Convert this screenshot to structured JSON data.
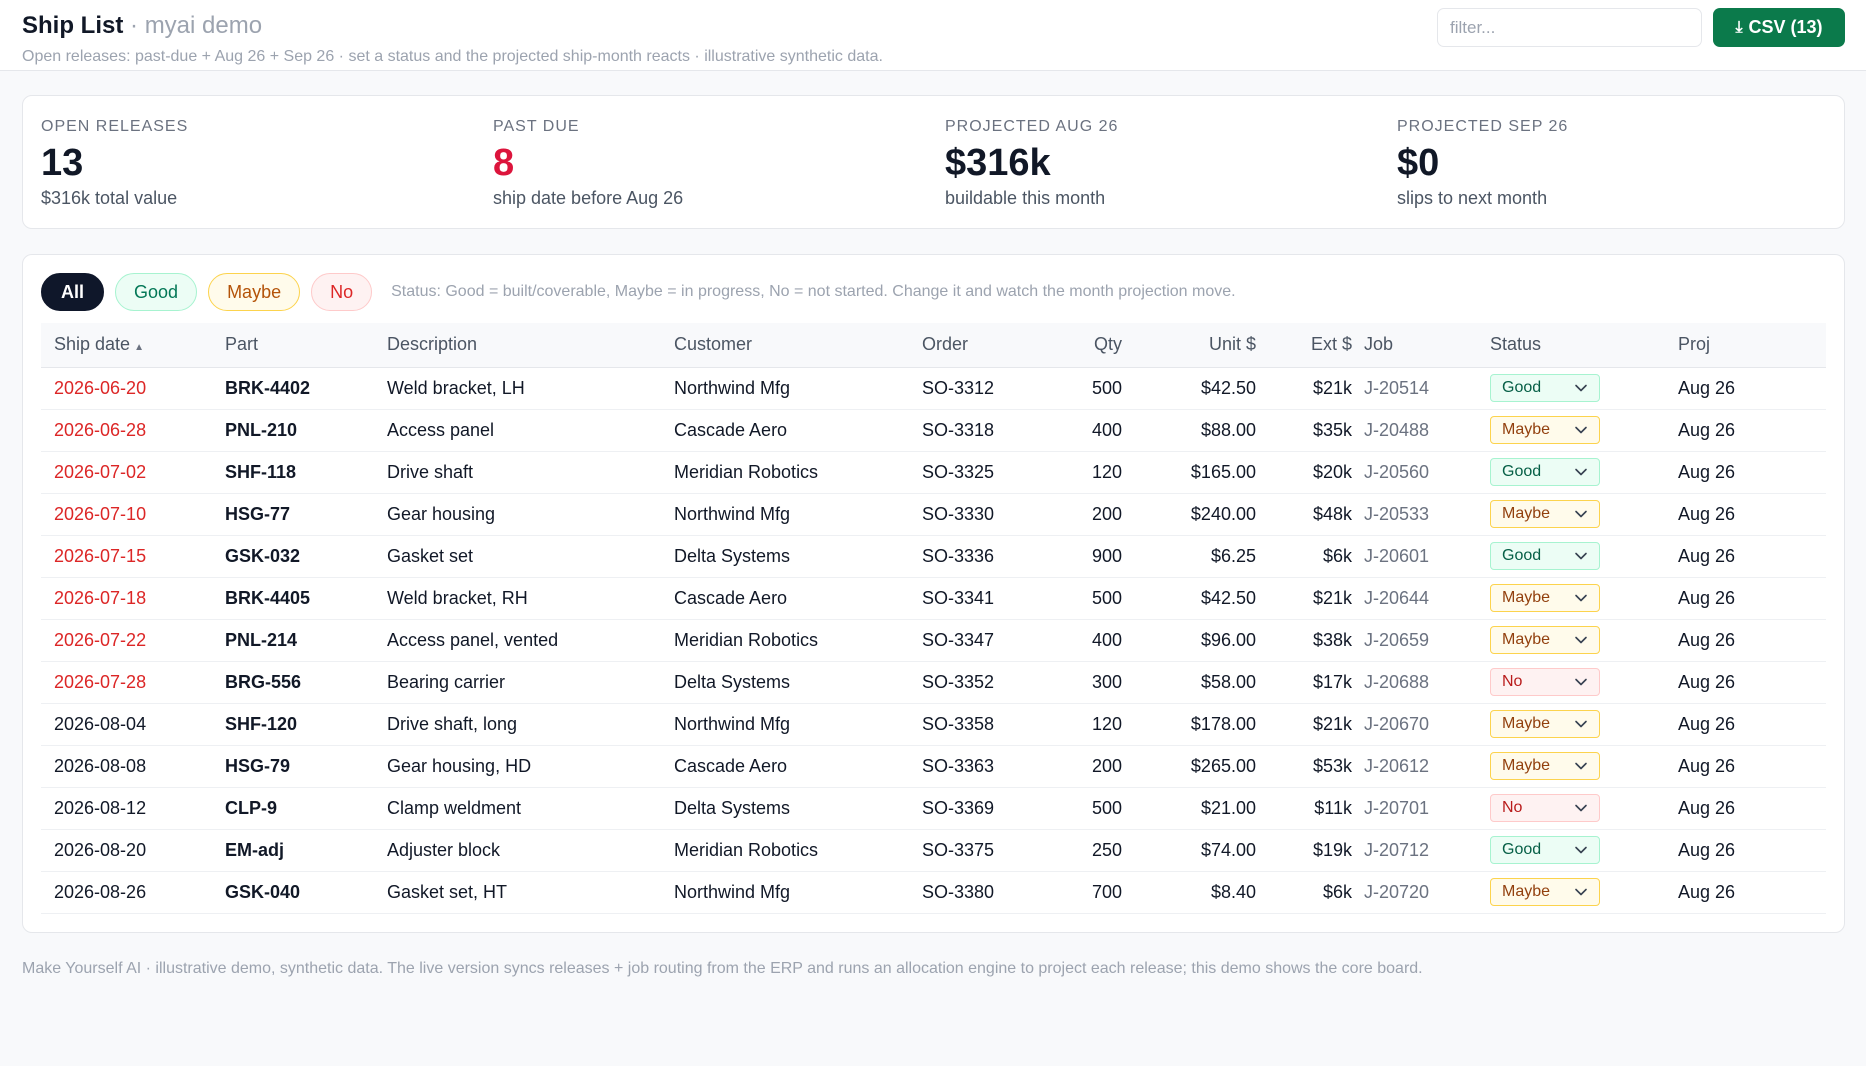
{
  "header": {
    "title": "Ship List",
    "separator": "·",
    "app_name": "myai demo",
    "subtitle": "Open releases: past-due + Aug 26 + Sep 26 · set a status and the projected ship-month reacts · illustrative synthetic data.",
    "filter_placeholder": "filter...",
    "csv_label": "CSV (13)",
    "download_icon": "download-icon"
  },
  "stats": [
    {
      "label": "OPEN RELEASES",
      "value": "13",
      "desc": "$316k total value"
    },
    {
      "label": "PAST DUE",
      "value": "8",
      "desc": "ship date before Aug 26",
      "color": "#dc143c"
    },
    {
      "label": "PROJECTED AUG 26",
      "value": "$316k",
      "desc": "buildable this month"
    },
    {
      "label": "PROJECTED SEP 26",
      "value": "$0",
      "desc": "slips to next month"
    }
  ],
  "filters": {
    "all": "All",
    "good": "Good",
    "maybe": "Maybe",
    "no": "No",
    "hint": "Status: Good = built/coverable, Maybe = in progress, No = not started. Change it and watch the month projection move."
  },
  "table": {
    "columns": {
      "ship_date": "Ship date",
      "sort_indicator": "▲",
      "part": "Part",
      "description": "Description",
      "customer": "Customer",
      "order": "Order",
      "qty": "Qty",
      "unit": "Unit $",
      "ext": "Ext $",
      "job": "Job",
      "status": "Status",
      "proj": "Proj"
    },
    "rows": [
      {
        "date": "2026-06-20",
        "past_due": true,
        "part": "BRK-4402",
        "description": "Weld bracket, LH",
        "customer": "Northwind Mfg",
        "order": "SO-3312",
        "qty": "500",
        "unit": "$42.50",
        "ext": "$21k",
        "job": "J-20514",
        "status": "Good",
        "proj": "Aug 26"
      },
      {
        "date": "2026-06-28",
        "past_due": true,
        "part": "PNL-210",
        "description": "Access panel",
        "customer": "Cascade Aero",
        "order": "SO-3318",
        "qty": "400",
        "unit": "$88.00",
        "ext": "$35k",
        "job": "J-20488",
        "status": "Maybe",
        "proj": "Aug 26"
      },
      {
        "date": "2026-07-02",
        "past_due": true,
        "part": "SHF-118",
        "description": "Drive shaft",
        "customer": "Meridian Robotics",
        "order": "SO-3325",
        "qty": "120",
        "unit": "$165.00",
        "ext": "$20k",
        "job": "J-20560",
        "status": "Good",
        "proj": "Aug 26"
      },
      {
        "date": "2026-07-10",
        "past_due": true,
        "part": "HSG-77",
        "description": "Gear housing",
        "customer": "Northwind Mfg",
        "order": "SO-3330",
        "qty": "200",
        "unit": "$240.00",
        "ext": "$48k",
        "job": "J-20533",
        "status": "Maybe",
        "proj": "Aug 26"
      },
      {
        "date": "2026-07-15",
        "past_due": true,
        "part": "GSK-032",
        "description": "Gasket set",
        "customer": "Delta Systems",
        "order": "SO-3336",
        "qty": "900",
        "unit": "$6.25",
        "ext": "$6k",
        "job": "J-20601",
        "status": "Good",
        "proj": "Aug 26"
      },
      {
        "date": "2026-07-18",
        "past_due": true,
        "part": "BRK-4405",
        "description": "Weld bracket, RH",
        "customer": "Cascade Aero",
        "order": "SO-3341",
        "qty": "500",
        "unit": "$42.50",
        "ext": "$21k",
        "job": "J-20644",
        "status": "Maybe",
        "proj": "Aug 26"
      },
      {
        "date": "2026-07-22",
        "past_due": true,
        "part": "PNL-214",
        "description": "Access panel, vented",
        "customer": "Meridian Robotics",
        "order": "SO-3347",
        "qty": "400",
        "unit": "$96.00",
        "ext": "$38k",
        "job": "J-20659",
        "status": "Maybe",
        "proj": "Aug 26"
      },
      {
        "date": "2026-07-28",
        "past_due": true,
        "part": "BRG-556",
        "description": "Bearing carrier",
        "customer": "Delta Systems",
        "order": "SO-3352",
        "qty": "300",
        "unit": "$58.00",
        "ext": "$17k",
        "job": "J-20688",
        "status": "No",
        "proj": "Aug 26"
      },
      {
        "date": "2026-08-04",
        "past_due": false,
        "part": "SHF-120",
        "description": "Drive shaft, long",
        "customer": "Northwind Mfg",
        "order": "SO-3358",
        "qty": "120",
        "unit": "$178.00",
        "ext": "$21k",
        "job": "J-20670",
        "status": "Maybe",
        "proj": "Aug 26"
      },
      {
        "date": "2026-08-08",
        "past_due": false,
        "part": "HSG-79",
        "description": "Gear housing, HD",
        "customer": "Cascade Aero",
        "order": "SO-3363",
        "qty": "200",
        "unit": "$265.00",
        "ext": "$53k",
        "job": "J-20612",
        "status": "Maybe",
        "proj": "Aug 26"
      },
      {
        "date": "2026-08-12",
        "past_due": false,
        "part": "CLP-9",
        "description": "Clamp weldment",
        "customer": "Delta Systems",
        "order": "SO-3369",
        "qty": "500",
        "unit": "$21.00",
        "ext": "$11k",
        "job": "J-20701",
        "status": "No",
        "proj": "Aug 26"
      },
      {
        "date": "2026-08-20",
        "past_due": false,
        "part": "EM-adj",
        "description": "Adjuster block",
        "customer": "Meridian Robotics",
        "order": "SO-3375",
        "qty": "250",
        "unit": "$74.00",
        "ext": "$19k",
        "job": "J-20712",
        "status": "Good",
        "proj": "Aug 26"
      },
      {
        "date": "2026-08-26",
        "past_due": false,
        "part": "GSK-040",
        "description": "Gasket set, HT",
        "customer": "Northwind Mfg",
        "order": "SO-3380",
        "qty": "700",
        "unit": "$8.40",
        "ext": "$6k",
        "job": "J-20720",
        "status": "Maybe",
        "proj": "Aug 26"
      }
    ]
  },
  "footer": {
    "text": "Make Yourself AI · illustrative demo, synthetic data. The live version syncs releases + job routing from the ERP and runs an allocation engine to project each release; this demo shows the core board."
  },
  "colors": {
    "accent": "#0b7a4b",
    "past_due": "#dc2626",
    "good": "#047857",
    "maybe": "#b45309",
    "no": "#dc2626"
  }
}
